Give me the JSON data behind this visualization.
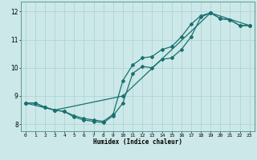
{
  "title": "",
  "xlabel": "Humidex (Indice chaleur)",
  "ylabel": "",
  "xlim": [
    -0.5,
    23.5
  ],
  "ylim": [
    7.75,
    12.35
  ],
  "yticks": [
    8,
    9,
    10,
    11,
    12
  ],
  "xticks": [
    0,
    1,
    2,
    3,
    4,
    5,
    6,
    7,
    8,
    9,
    10,
    11,
    12,
    13,
    14,
    15,
    16,
    17,
    18,
    19,
    20,
    21,
    22,
    23
  ],
  "bg_color": "#cce8e8",
  "grid_color": "#b0d4d4",
  "line_color": "#1a7070",
  "line1_x": [
    0,
    1,
    2,
    3,
    4,
    5,
    6,
    7,
    8,
    9,
    10,
    11,
    12,
    13,
    14,
    15,
    16,
    17,
    18,
    19,
    20,
    21,
    22,
    23
  ],
  "line1_y": [
    8.75,
    8.75,
    8.6,
    8.5,
    8.45,
    8.25,
    8.15,
    8.1,
    8.05,
    8.3,
    8.75,
    9.8,
    10.05,
    10.0,
    10.3,
    10.35,
    10.65,
    11.1,
    11.8,
    11.95,
    11.75,
    11.7,
    11.5,
    11.5
  ],
  "line2_x": [
    0,
    1,
    2,
    3,
    4,
    5,
    6,
    7,
    8,
    9,
    10,
    11,
    12,
    13,
    14,
    15,
    16,
    17,
    18,
    19,
    20,
    21,
    22,
    23
  ],
  "line2_y": [
    8.75,
    8.75,
    8.6,
    8.5,
    8.45,
    8.3,
    8.2,
    8.15,
    8.1,
    8.35,
    9.55,
    10.1,
    10.35,
    10.4,
    10.65,
    10.75,
    11.1,
    11.55,
    11.85,
    11.95,
    11.75,
    11.7,
    11.5,
    11.5
  ],
  "line3_x": [
    0,
    3,
    10,
    19,
    23
  ],
  "line3_y": [
    8.75,
    8.5,
    9.0,
    11.95,
    11.5
  ],
  "marker": "D",
  "markersize": 2.0,
  "linewidth": 0.9
}
